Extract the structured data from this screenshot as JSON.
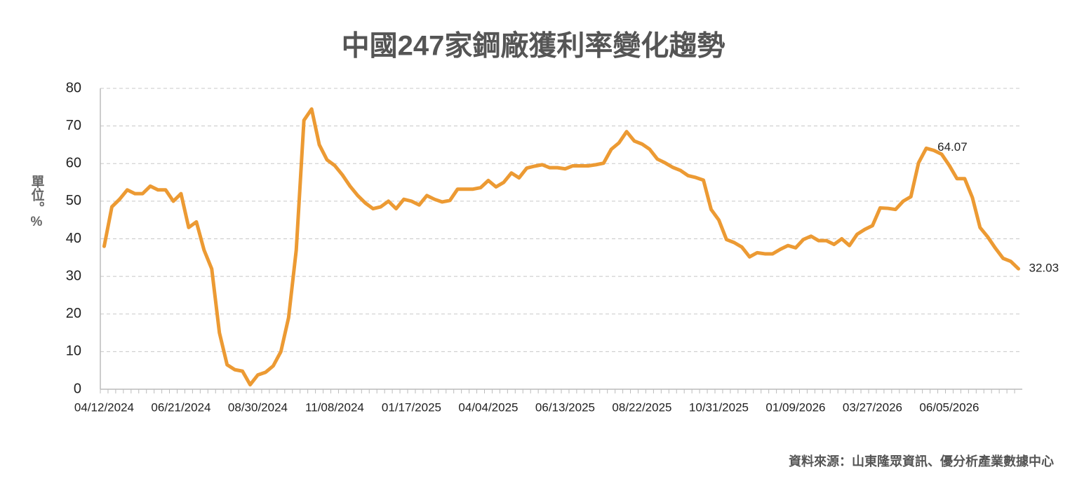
{
  "chart_data": {
    "type": "line",
    "title": "中國247家鋼廠獲利率變化趨勢",
    "y_label": "單位。%",
    "source": "資料來源：山東隆眾資訊、優分析產業數據中心",
    "categories": [
      "04/12/2024",
      null,
      null,
      null,
      null,
      null,
      null,
      null,
      null,
      null,
      "06/21/2024",
      null,
      null,
      null,
      null,
      null,
      null,
      null,
      null,
      null,
      "08/30/2024",
      null,
      null,
      null,
      null,
      null,
      null,
      null,
      null,
      null,
      "11/08/2024",
      null,
      null,
      null,
      null,
      null,
      null,
      null,
      null,
      null,
      "01/17/2025",
      null,
      null,
      null,
      null,
      null,
      null,
      null,
      null,
      null,
      "04/04/2025",
      null,
      null,
      null,
      null,
      null,
      null,
      null,
      null,
      null,
      "06/13/2025",
      null,
      null,
      null,
      null,
      null,
      null,
      null,
      null,
      null,
      "08/22/2025",
      null,
      null,
      null,
      null,
      null,
      null,
      null,
      null,
      null,
      "10/31/2025",
      null,
      null,
      null,
      null,
      null,
      null,
      null,
      null,
      null,
      "01/09/2026",
      null,
      null,
      null,
      null,
      null,
      null,
      null,
      null,
      null,
      "03/27/2026",
      null,
      null,
      null,
      null,
      null,
      null,
      null,
      null,
      null,
      "06/05/2026",
      null,
      null,
      null,
      null,
      null,
      null,
      null,
      null,
      null
    ],
    "series": [
      {
        "color": "#ec9a33",
        "values": [
          38,
          48.5,
          50.5,
          53,
          52,
          52,
          54,
          53,
          53,
          50,
          52,
          43,
          44.5,
          37,
          32,
          15,
          6.5,
          5.2,
          4.8,
          1.2,
          3.8,
          4.5,
          6.2,
          10,
          19,
          37,
          71.5,
          74.5,
          65,
          61,
          59.5,
          57,
          54,
          51.5,
          49.5,
          48,
          48.5,
          50,
          48,
          50.5,
          50,
          49,
          51.5,
          50.5,
          49.8,
          50.2,
          53.2,
          53.2,
          53.2,
          53.6,
          55.5,
          53.8,
          55,
          57.5,
          56.2,
          58.8,
          59.3,
          59.7,
          58.9,
          58.9,
          58.6,
          59.4,
          59.4,
          59.4,
          59.7,
          60.1,
          63.8,
          65.5,
          68.5,
          66,
          65.2,
          63.8,
          61.2,
          60.2,
          59,
          58.2,
          56.8,
          56.3,
          55.6,
          47.8,
          45,
          39.8,
          39,
          37.8,
          35.2,
          36.3,
          36,
          36,
          37.2,
          38.2,
          37.6,
          39.8,
          40.7,
          39.5,
          39.5,
          38.5,
          40,
          38.2,
          41.2,
          42.5,
          43.5,
          48.2,
          48.1,
          47.8,
          50,
          51.2,
          60.2,
          64.07,
          63.5,
          62.5,
          59.5,
          56,
          56,
          51,
          43,
          40.5,
          37.5,
          34.8,
          34,
          32.03
        ]
      }
    ],
    "data_labels": [
      107,
      119
    ],
    "ylim": [
      0,
      80
    ],
    "yticks": [
      0,
      10,
      20,
      30,
      40,
      50,
      60,
      70,
      80
    ],
    "grid": true
  }
}
